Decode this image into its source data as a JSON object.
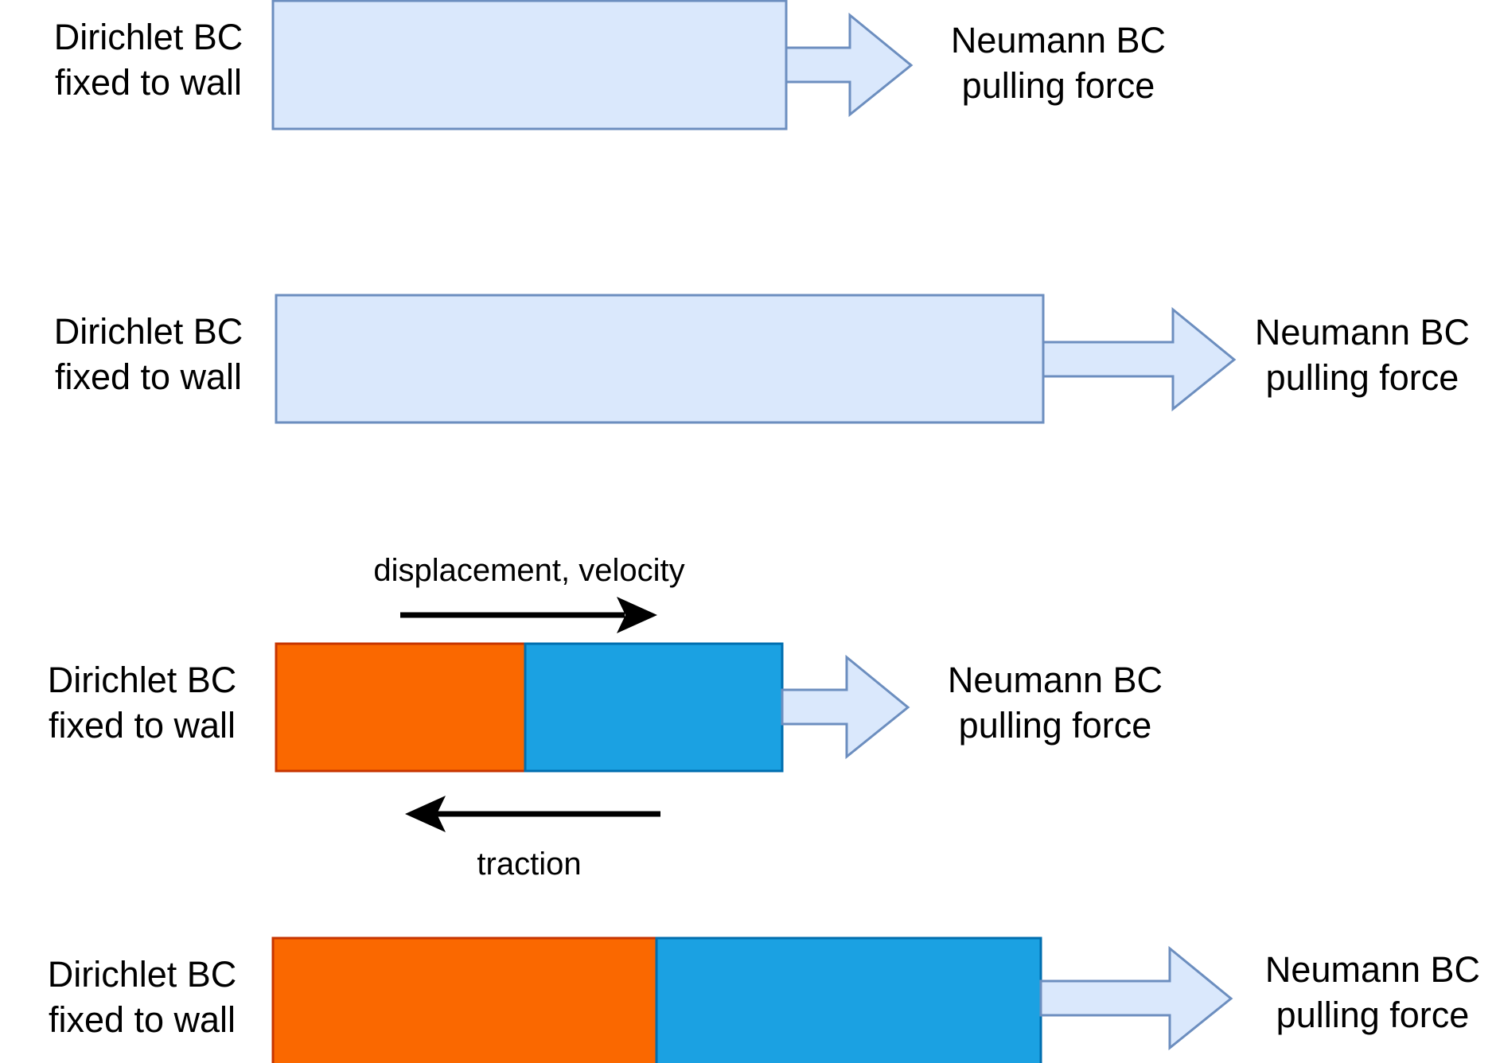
{
  "colors": {
    "bar_fill": "#dae8fc",
    "bar_stroke": "#6c8ebf",
    "part_a_fill": "#fa6800",
    "part_a_stroke": "#c73500",
    "part_b_fill": "#1ba1e2",
    "part_b_stroke": "#006eaf",
    "arrow_black": "#000000"
  },
  "panels": [
    {
      "left": [
        "Dirichlet BC",
        "fixed to wall"
      ],
      "right": [
        "Neumann BC",
        "pulling force"
      ]
    },
    {
      "left": [
        "Dirichlet BC",
        "fixed to wall"
      ],
      "right": [
        "Neumann BC",
        "pulling force"
      ]
    },
    {
      "left": [
        "Dirichlet BC",
        "fixed to wall"
      ],
      "right": [
        "Neumann BC",
        "pulling force"
      ]
    },
    {
      "left": [
        "Dirichlet BC",
        "fixed to wall"
      ],
      "right": [
        "Neumann BC",
        "pulling force"
      ]
    }
  ],
  "annotations": {
    "top": "displacement, velocity",
    "bottom": "traction"
  }
}
